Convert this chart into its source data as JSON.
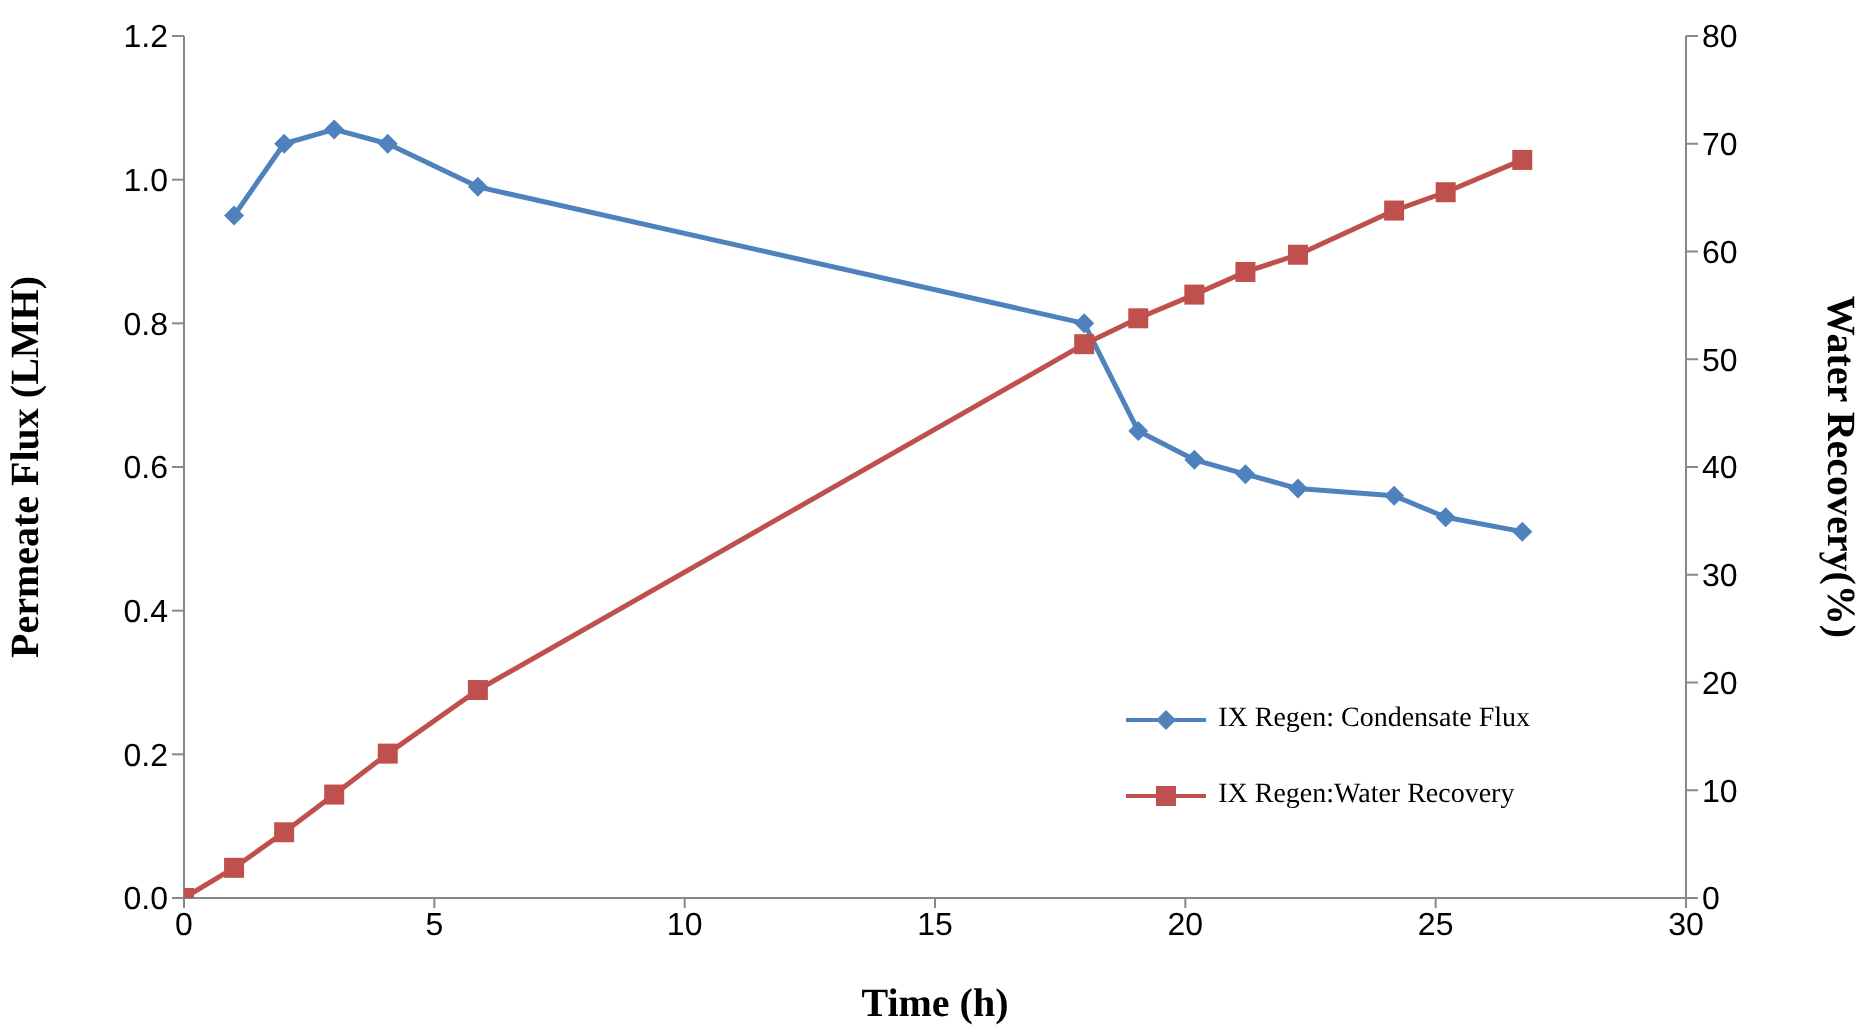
{
  "chart_data": {
    "type": "line",
    "xlabel": "Time (h)",
    "ylabel": "Permeate Flux (LMH)",
    "y2label": "Water Recovery(%)",
    "xlim": [
      0,
      30
    ],
    "xticks": [
      0,
      5,
      10,
      15,
      20,
      25,
      30
    ],
    "ylim": [
      0,
      1.2
    ],
    "yticks": [
      {
        "value": 0,
        "label": "0.0"
      },
      {
        "value": 0.2,
        "label": "0.2"
      },
      {
        "value": 0.4,
        "label": "0.4"
      },
      {
        "value": 0.6,
        "label": "0.6"
      },
      {
        "value": 0.8,
        "label": "0.8"
      },
      {
        "value": 1,
        "label": "1.0"
      },
      {
        "value": 1.2,
        "label": "1.2"
      }
    ],
    "y2lim": [
      0,
      80
    ],
    "y2ticks": [
      0,
      10,
      20,
      30,
      40,
      50,
      60,
      70,
      80
    ],
    "grid": false,
    "legend": "bottom right",
    "series": [
      {
        "name": "IX Regen: Condensate Flux",
        "color": "#4f81bd",
        "marker": "diamond",
        "x": [
          1,
          2,
          3,
          4.07,
          5.87,
          17.98,
          19.06,
          20.18,
          21.2,
          22.25,
          24.17,
          25.2,
          26.73
        ],
        "values": [
          0.95,
          1.05,
          1.07,
          1.05,
          0.99,
          0.8,
          0.65,
          0.61,
          0.59,
          0.57,
          0.56,
          0.53,
          0.51
        ]
      },
      {
        "name": "IX Regen:Water Recovery",
        "color": "#c0504d",
        "marker": "square",
        "axis": "y2",
        "x": [
          0,
          1,
          2,
          3,
          4.07,
          5.87,
          17.98,
          19.06,
          20.18,
          21.2,
          22.25,
          24.17,
          25.2,
          26.73
        ],
        "values": [
          0,
          2.8,
          6.1,
          9.6,
          13.4,
          19.3,
          51.4,
          53.8,
          56,
          58.1,
          59.7,
          63.8,
          65.5,
          68.5
        ]
      }
    ]
  }
}
